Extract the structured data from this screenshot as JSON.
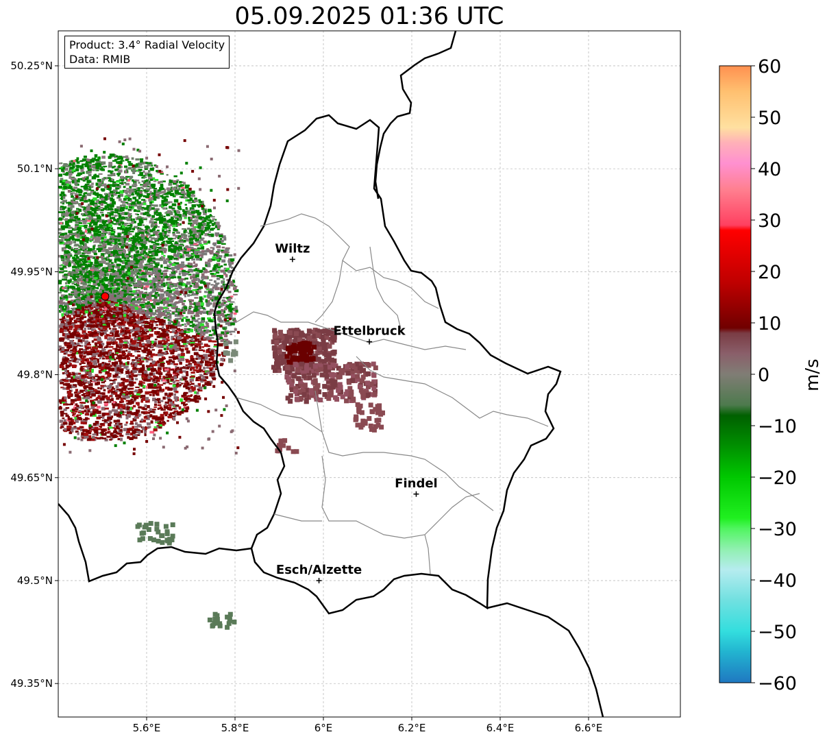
{
  "title": "05.09.2025 01:36 UTC",
  "info": {
    "product": "Product: 3.4° Radial Velocity",
    "data": "Data: RMIB"
  },
  "lat_ticks": [
    {
      "label": "50.25°N",
      "value": 50.25
    },
    {
      "label": "50.1°N",
      "value": 50.1
    },
    {
      "label": "49.95°N",
      "value": 49.95
    },
    {
      "label": "49.8°N",
      "value": 49.8
    },
    {
      "label": "49.65°N",
      "value": 49.65
    },
    {
      "label": "49.5°N",
      "value": 49.5
    },
    {
      "label": "49.35°N",
      "value": 49.35
    }
  ],
  "lon_ticks": [
    {
      "label": "5.6°E",
      "value": 5.6
    },
    {
      "label": "5.8°E",
      "value": 5.8
    },
    {
      "label": "6°E",
      "value": 6.0
    },
    {
      "label": "6.2°E",
      "value": 6.2
    },
    {
      "label": "6.4°E",
      "value": 6.4
    },
    {
      "label": "6.6°E",
      "value": 6.6
    }
  ],
  "cities": [
    {
      "name": "Wiltz",
      "lon": 5.93,
      "lat": 49.968
    },
    {
      "name": "Ettelbruck",
      "lon": 6.104,
      "lat": 49.848
    },
    {
      "name": "Findel",
      "lon": 6.21,
      "lat": 49.626
    },
    {
      "name": "Esch/Alzette",
      "lon": 5.99,
      "lat": 49.5
    }
  ],
  "radar_site": {
    "lon": 5.506,
    "lat": 49.914,
    "color": "#ff0000"
  },
  "colorbar": {
    "label": "m/s",
    "min": -60,
    "max": 60,
    "ticks": [
      {
        "label": "60",
        "value": 60
      },
      {
        "label": "50",
        "value": 50
      },
      {
        "label": "40",
        "value": 40
      },
      {
        "label": "30",
        "value": 30
      },
      {
        "label": "20",
        "value": 20
      },
      {
        "label": "10",
        "value": 10
      },
      {
        "label": "0",
        "value": 0
      },
      {
        "label": "−10",
        "value": -10
      },
      {
        "label": "−20",
        "value": -20
      },
      {
        "label": "−30",
        "value": -30
      },
      {
        "label": "−40",
        "value": -40
      },
      {
        "label": "−50",
        "value": -50
      },
      {
        "label": "−60",
        "value": -60
      }
    ],
    "stops": [
      {
        "v": -60,
        "c": "#1f78c1"
      },
      {
        "v": -54,
        "c": "#22b4d0"
      },
      {
        "v": -50,
        "c": "#33dede"
      },
      {
        "v": -44,
        "c": "#70e0e0"
      },
      {
        "v": -38,
        "c": "#b6ecef"
      },
      {
        "v": -34,
        "c": "#90f0b0"
      },
      {
        "v": -30,
        "c": "#50f560"
      },
      {
        "v": -28,
        "c": "#20f020"
      },
      {
        "v": -20,
        "c": "#00c800"
      },
      {
        "v": -14,
        "c": "#009000"
      },
      {
        "v": -8,
        "c": "#006000"
      },
      {
        "v": -6,
        "c": "#4d7a4d"
      },
      {
        "v": 0,
        "c": "#807d75"
      },
      {
        "v": 4,
        "c": "#8a5f6a"
      },
      {
        "v": 8,
        "c": "#7a3c44"
      },
      {
        "v": 9,
        "c": "#700000"
      },
      {
        "v": 18,
        "c": "#c00000"
      },
      {
        "v": 28,
        "c": "#ff0000"
      },
      {
        "v": 29,
        "c": "#ff4060"
      },
      {
        "v": 36,
        "c": "#ff8090"
      },
      {
        "v": 41,
        "c": "#ff90d0"
      },
      {
        "v": 45,
        "c": "#ffb0b8"
      },
      {
        "v": 48,
        "c": "#ffe0a0"
      },
      {
        "v": 55,
        "c": "#ffc070"
      },
      {
        "v": 60,
        "c": "#ff9050"
      }
    ]
  },
  "palette": {
    "border": "#000000",
    "cantons": "#888888",
    "grid": "#b0b0b0",
    "dark_red": "#7a3c44",
    "deep_red": "#6a0000",
    "gray": "#8a7070",
    "green": "#008000",
    "dull_green": "#5a7a58",
    "bright_green": "#30e030"
  }
}
